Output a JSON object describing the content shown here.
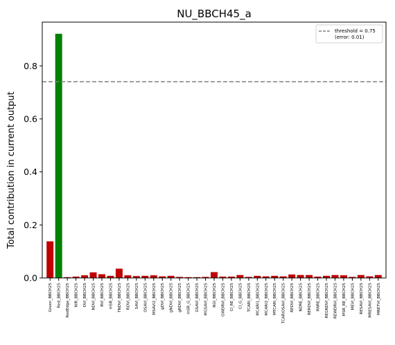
{
  "chart_data": {
    "type": "bar",
    "title": "NU_BBCH45_a",
    "xlabel": "",
    "ylabel": "Total contribution in current output",
    "ylim": [
      0,
      0.965
    ],
    "yticks": [
      0.0,
      0.2,
      0.4,
      0.6,
      0.8
    ],
    "ytick_labels": [
      "0.0",
      "0.2",
      "0.4",
      "0.6",
      "0.8"
    ],
    "grid": false,
    "legend_placement": "top-right",
    "categories": [
      "Green_BBCH25",
      "Red_BBCH25",
      "RedEdge_BBCH25",
      "NIR_BBCH25",
      "DVI_BBCH25",
      "NDVI_BBCH25",
      "RVI_BBCH25",
      "mSR_BBCH25",
      "TNDVI_BBCH25",
      "RDVI_BBCH25",
      "SAVI_BBCH25",
      "OSAVI_BBCH25",
      "MSAVI2_BBCH25",
      "gDVI_BBCH25",
      "gNDVI_BBCH25",
      "gRDVI_BBCH25",
      "mSR_G_BBCH25",
      "GSAVI_BBCH25",
      "MGSAVI_BBCH25",
      "NGI_BBCH25",
      "GWDRVI_BBCH25",
      "CI_RE_BBCH25",
      "CI_G_BBCH25",
      "TCARI_BBCH25",
      "MCARI1_BBCH25",
      "MCARI2_BBCH25",
      "MTCARI_BBCH25",
      "TCARIOSAVI_BBCH25",
      "REDVI_BBCH25",
      "NDRE_BBCH25",
      "RERDVI_BBCH25",
      "RNRE_BBCH25",
      "REGNDVI_BBCH25",
      "REWDRVI_BBCH25",
      "MSR_RE_BBCH25",
      "MEVI_BBCH25",
      "RESAVI_BBCH25",
      "MRESAVI_BBCH25",
      "MRETVI_BBCH25"
    ],
    "values": [
      0.138,
      0.921,
      0.003,
      0.005,
      0.01,
      0.021,
      0.014,
      0.008,
      0.035,
      0.01,
      0.007,
      0.008,
      0.01,
      0.006,
      0.008,
      0.004,
      0.003,
      0.003,
      0.004,
      0.022,
      0.005,
      0.005,
      0.011,
      0.004,
      0.008,
      0.006,
      0.008,
      0.006,
      0.013,
      0.011,
      0.011,
      0.005,
      0.008,
      0.011,
      0.01,
      0.004,
      0.011,
      0.006,
      0.011
    ],
    "bar_colors": [
      "#c00000",
      "#008000",
      "#c00000",
      "#c00000",
      "#c00000",
      "#c00000",
      "#c00000",
      "#c00000",
      "#c00000",
      "#c00000",
      "#c00000",
      "#c00000",
      "#c00000",
      "#c00000",
      "#c00000",
      "#c00000",
      "#c00000",
      "#c00000",
      "#c00000",
      "#c00000",
      "#c00000",
      "#c00000",
      "#c00000",
      "#c00000",
      "#c00000",
      "#c00000",
      "#c00000",
      "#c00000",
      "#c00000",
      "#c00000",
      "#c00000",
      "#c00000",
      "#c00000",
      "#c00000",
      "#c00000",
      "#c00000",
      "#c00000",
      "#c00000",
      "#c00000"
    ],
    "threshold": {
      "value": 0.74,
      "label": "threshold = 0.75",
      "sublabel": "(error: 0.01)",
      "color": "#808080",
      "style": "dashed"
    }
  }
}
